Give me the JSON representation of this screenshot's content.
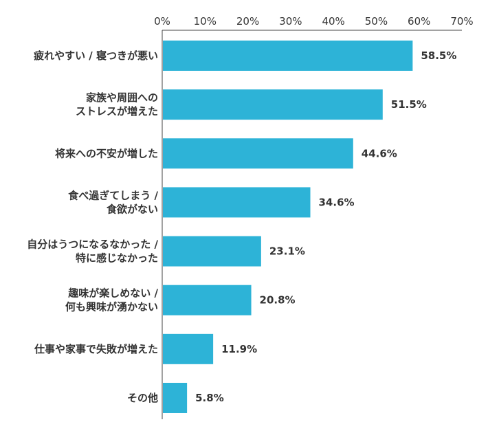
{
  "chart_data": {
    "type": "bar",
    "orientation": "horizontal",
    "title": "",
    "xlabel": "",
    "ylabel": "",
    "xlim": [
      0,
      70
    ],
    "x_ticks": [
      0,
      10,
      20,
      30,
      40,
      50,
      60,
      70
    ],
    "x_tick_labels": [
      "0%",
      "10%",
      "20%",
      "30%",
      "40%",
      "50%",
      "60%",
      "70%"
    ],
    "grid": false,
    "legend": "none",
    "bar_color": "#2db3d7",
    "categories": [
      [
        "疲れやすい / 寝つきが悪い"
      ],
      [
        "家族や周囲への",
        "ストレスが増えた"
      ],
      [
        "将来への不安が増した"
      ],
      [
        "食べ過ぎてしまう /",
        "食欲がない"
      ],
      [
        "自分はうつになるなかった /",
        "特に感じなかった"
      ],
      [
        "趣味が楽しめない /",
        "何も興味が湧かない"
      ],
      [
        "仕事や家事で失敗が増えた"
      ],
      [
        "その他"
      ]
    ],
    "values": [
      58.5,
      51.5,
      44.6,
      34.6,
      23.1,
      20.8,
      11.9,
      5.8
    ],
    "value_labels": [
      "58.5%",
      "51.5%",
      "44.6%",
      "34.6%",
      "23.1%",
      "20.8%",
      "11.9%",
      "5.8%"
    ]
  }
}
